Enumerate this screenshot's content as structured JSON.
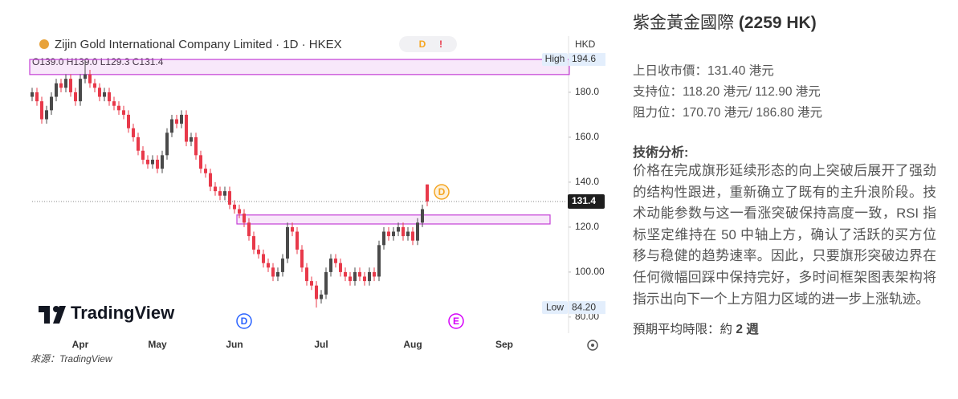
{
  "chart_data": {
    "type": "candlestick",
    "title": "Zijin Gold International Company Limited · 1D · HKEX",
    "header_badges": [
      "D",
      "!"
    ],
    "currency": "HKD",
    "ohlc_label": "O139.0 H139.0 L129.3 C131.4",
    "logo_text": "TradingView",
    "source": "來源：TradingView",
    "categories": [
      null,
      null,
      null,
      null,
      null,
      null,
      null,
      null,
      null,
      null,
      "Apr",
      null,
      null,
      null,
      null,
      null,
      null,
      null,
      null,
      null,
      null,
      null,
      null,
      null,
      null,
      null,
      "May",
      null,
      null,
      null,
      null,
      null,
      null,
      null,
      null,
      null,
      null,
      null,
      null,
      null,
      null,
      null,
      "Jun",
      null,
      null,
      null,
      null,
      null,
      null,
      null,
      null,
      null,
      null,
      null,
      null,
      null,
      null,
      null,
      null,
      null,
      "Jul",
      null,
      null,
      null,
      null,
      null,
      null,
      null,
      null,
      null,
      null,
      null,
      null,
      null,
      null,
      null,
      null,
      null,
      null,
      "Aug",
      null,
      null,
      null,
      null,
      null,
      null,
      null,
      null,
      null,
      null,
      null,
      null,
      null,
      null,
      null,
      null,
      null,
      null,
      "Sep",
      null,
      null,
      null,
      null,
      null,
      null,
      null,
      null,
      null,
      null,
      null,
      null,
      null
    ],
    "open": [
      178,
      180,
      176,
      168,
      172,
      178,
      184,
      182,
      186,
      180,
      176,
      186,
      188,
      184,
      182,
      178,
      180,
      176,
      174,
      172,
      170,
      164,
      160,
      154,
      150,
      148,
      150,
      146,
      152,
      162,
      168,
      166,
      170,
      158,
      160,
      152,
      146,
      144,
      138,
      136,
      134,
      136,
      130,
      128,
      126,
      122,
      116,
      110,
      108,
      104,
      102,
      98,
      100,
      106,
      120,
      118,
      110,
      102,
      96,
      94,
      88,
      90,
      100,
      106,
      104,
      100,
      98,
      96,
      100,
      98,
      96,
      100,
      98,
      112,
      118,
      116,
      118,
      120,
      116,
      118,
      114,
      122,
      139,
      null,
      null,
      null,
      null,
      null,
      null,
      null,
      null,
      null,
      null,
      null,
      null,
      null,
      null,
      null,
      null,
      null,
      null,
      null,
      null,
      null,
      null,
      null,
      null,
      null,
      null,
      null,
      null,
      null
    ],
    "high": [
      182,
      182,
      178,
      174,
      180,
      186,
      186,
      188,
      188,
      182,
      188,
      194.6,
      190,
      186,
      184,
      182,
      182,
      178,
      176,
      174,
      172,
      166,
      162,
      156,
      152,
      152,
      152,
      154,
      164,
      170,
      170,
      172,
      172,
      162,
      162,
      154,
      148,
      146,
      140,
      138,
      138,
      138,
      132,
      130,
      128,
      124,
      118,
      112,
      110,
      106,
      104,
      102,
      108,
      122,
      122,
      120,
      112,
      104,
      98,
      96,
      92,
      102,
      108,
      108,
      106,
      102,
      100,
      102,
      102,
      100,
      102,
      102,
      114,
      120,
      120,
      120,
      122,
      122,
      120,
      120,
      124,
      130,
      139,
      null,
      null,
      null,
      null,
      null,
      null,
      null,
      null,
      null,
      null,
      null,
      null,
      null,
      null,
      null,
      null,
      null,
      null,
      null,
      null,
      null,
      null,
      null,
      null,
      null,
      null,
      null,
      null,
      null
    ],
    "low": [
      176,
      174,
      166,
      166,
      170,
      176,
      180,
      180,
      178,
      174,
      174,
      184,
      182,
      180,
      176,
      176,
      174,
      172,
      170,
      168,
      162,
      158,
      152,
      148,
      146,
      146,
      144,
      144,
      150,
      160,
      164,
      164,
      156,
      156,
      150,
      144,
      142,
      136,
      134,
      132,
      132,
      128,
      126,
      124,
      120,
      114,
      108,
      106,
      102,
      100,
      96,
      96,
      98,
      104,
      116,
      108,
      100,
      94,
      92,
      84.2,
      86,
      88,
      98,
      102,
      98,
      96,
      94,
      94,
      96,
      94,
      94,
      96,
      96,
      110,
      114,
      114,
      116,
      114,
      114,
      112,
      112,
      120,
      129.3,
      null,
      null,
      null,
      null,
      null,
      null,
      null,
      null,
      null,
      null,
      null,
      null,
      null,
      null,
      null,
      null,
      null,
      null,
      null,
      null,
      null,
      null,
      null,
      null,
      null,
      null,
      null,
      null,
      null
    ],
    "close": [
      180,
      176,
      168,
      172,
      178,
      184,
      182,
      186,
      180,
      176,
      186,
      188,
      184,
      182,
      178,
      180,
      176,
      174,
      172,
      170,
      164,
      160,
      154,
      150,
      148,
      150,
      146,
      152,
      162,
      168,
      166,
      170,
      158,
      160,
      152,
      146,
      144,
      138,
      136,
      134,
      136,
      130,
      128,
      126,
      122,
      116,
      110,
      108,
      104,
      102,
      98,
      100,
      106,
      120,
      118,
      110,
      102,
      96,
      94,
      88,
      90,
      100,
      106,
      104,
      100,
      98,
      96,
      100,
      98,
      96,
      100,
      98,
      112,
      118,
      116,
      118,
      120,
      116,
      118,
      114,
      122,
      128,
      131.4,
      null,
      null,
      null,
      null,
      null,
      null,
      null,
      null,
      null,
      null,
      null,
      null,
      null,
      null,
      null,
      null,
      null,
      null,
      null,
      null,
      null,
      null,
      null,
      null,
      null,
      null,
      null,
      null,
      null
    ],
    "up_color": "#4a4a4a",
    "down_color": "#e8394a",
    "ylim": [
      74.6,
      200.7
    ],
    "yticks": [
      {
        "value": 80,
        "label": "80.00"
      },
      {
        "value": 100,
        "label": "100.00"
      },
      {
        "value": 120,
        "label": "120.0"
      },
      {
        "value": 140,
        "label": "140.0"
      },
      {
        "value": 160,
        "label": "160.0"
      },
      {
        "value": 180,
        "label": "180.0"
      }
    ],
    "last_price": 131.4,
    "high_marker": {
      "label": "High",
      "value": 194.6
    },
    "low_marker": {
      "label": "Low",
      "value": {
        "value": 84.2,
        "label": "84.20"
      }
    },
    "zones": [
      {
        "low": 187.9,
        "high": 194.6,
        "from": 0,
        "to": 111
      },
      {
        "low": 121.4,
        "high": 125.4,
        "from": 43,
        "to": 107
      }
    ],
    "zone_color": "#c43fd6",
    "events": [
      {
        "label": "D",
        "index": 44,
        "color": "#2962ff",
        "row": "bottom"
      },
      {
        "label": "E",
        "index": 88,
        "color": "#d500f9",
        "row": "bottom"
      },
      {
        "label": "D",
        "index": 85,
        "color": "#f5a623",
        "row": "price"
      }
    ]
  },
  "sidebar": {
    "title_name": "紫金黃金國際",
    "title_code": "(2259 HK)",
    "facts": [
      "上日收市價：131.40 港元",
      "支持位：118.20 港元/ 112.90 港元",
      "阻力位：170.70 港元/ 186.80 港元"
    ],
    "analysis_heading": "技術分析:",
    "analysis": "价格在完成旗形延续形态的向上突破后展开了强劲的结构性跟进，重新确立了既有的主升浪阶段。技术动能参数与这一看涨突破保持高度一致，RSI 指标坚定维持在 50 中轴上方，确认了活跃的买方位移与稳健的趋势速率。因此，只要旗形突破边界在任何微幅回踩中保持完好，多时间框架图表架构将指示出向下一个上方阻力区域的进一步上涨轨迹。",
    "horizon_label": "預期平均時限：約",
    "horizon_value": "2",
    "horizon_unit": "週"
  }
}
